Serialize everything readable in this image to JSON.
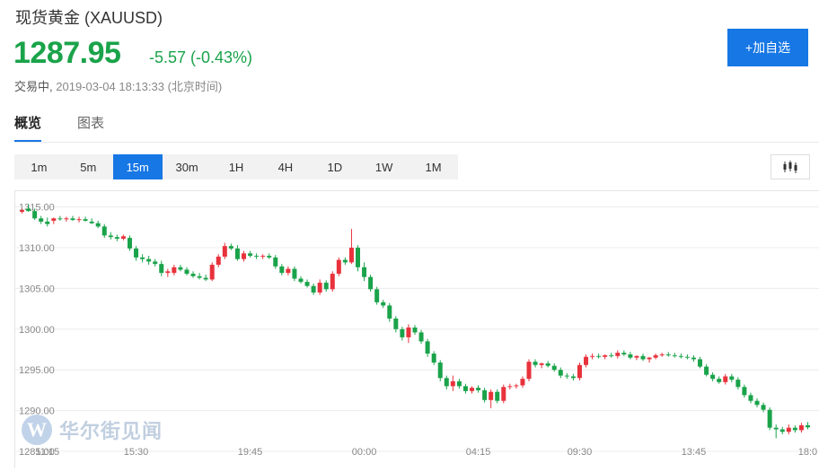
{
  "header": {
    "title": "现货黄金 (XAUUSD)",
    "price": "1287.95",
    "change": "-5.57 (-0.43%)",
    "status": "交易中,",
    "timestamp": "2019-03-04 18:13:33 (北京时间)",
    "add_button": "+加自选"
  },
  "tabs": [
    {
      "label": "概览",
      "active": true
    },
    {
      "label": "图表",
      "active": false
    }
  ],
  "ranges": [
    {
      "label": "1m",
      "active": false
    },
    {
      "label": "5m",
      "active": false
    },
    {
      "label": "15m",
      "active": true
    },
    {
      "label": "30m",
      "active": false
    },
    {
      "label": "1H",
      "active": false
    },
    {
      "label": "4H",
      "active": false
    },
    {
      "label": "1D",
      "active": false
    },
    {
      "label": "1W",
      "active": false
    },
    {
      "label": "1M",
      "active": false
    }
  ],
  "chart_type_icon": "candlestick-icon",
  "watermark": {
    "logo": "W",
    "text": "华尔街见闻"
  },
  "colors": {
    "up": "#e8323c",
    "down": "#1aa34a",
    "accent": "#1677e5"
  },
  "chart_data": {
    "type": "candlestick",
    "ylim": [
      1285.0,
      1316.5
    ],
    "y_ticks": [
      "1315.00",
      "1310.00",
      "1305.00",
      "1300.00",
      "1295.00",
      "1290.00",
      "1285.00"
    ],
    "y_tick_values": [
      1315,
      1310,
      1305,
      1300,
      1295,
      1290,
      1285
    ],
    "x_ticks": [
      "11:15",
      "15:30",
      "19:45",
      "00:00",
      "04:15",
      "09:30",
      "13:45",
      "18:0"
    ],
    "x_tick_index": [
      4,
      18,
      36,
      54,
      72,
      88,
      106,
      124
    ],
    "candles": [
      [
        1314.4,
        1314.8,
        1314.2,
        1314.6
      ],
      [
        1314.8,
        1315.3,
        1314.4,
        1314.5
      ],
      [
        1314.5,
        1314.8,
        1313.4,
        1313.6
      ],
      [
        1313.6,
        1313.9,
        1312.9,
        1313.2
      ],
      [
        1313.2,
        1313.7,
        1312.6,
        1312.9
      ],
      [
        1313.3,
        1313.7,
        1312.9,
        1313.6
      ],
      [
        1313.6,
        1313.9,
        1313.3,
        1313.5
      ],
      [
        1313.5,
        1313.8,
        1313.2,
        1313.6
      ],
      [
        1313.6,
        1313.9,
        1313.3,
        1313.4
      ],
      [
        1313.4,
        1313.8,
        1313.1,
        1313.5
      ],
      [
        1313.5,
        1313.8,
        1313.2,
        1313.3
      ],
      [
        1313.2,
        1313.6,
        1312.9,
        1313.0
      ],
      [
        1313.0,
        1313.3,
        1312.4,
        1312.6
      ],
      [
        1312.6,
        1312.9,
        1311.2,
        1311.5
      ],
      [
        1311.5,
        1311.9,
        1311.0,
        1311.3
      ],
      [
        1311.3,
        1311.6,
        1310.8,
        1311.1
      ],
      [
        1311.1,
        1311.6,
        1310.9,
        1311.4
      ],
      [
        1311.2,
        1311.5,
        1309.6,
        1309.9
      ],
      [
        1309.9,
        1310.2,
        1308.4,
        1308.8
      ],
      [
        1308.8,
        1309.2,
        1308.2,
        1308.6
      ],
      [
        1308.6,
        1309.0,
        1307.9,
        1308.3
      ],
      [
        1308.3,
        1308.6,
        1307.7,
        1308.0
      ],
      [
        1308.0,
        1308.4,
        1306.5,
        1306.9
      ],
      [
        1306.9,
        1307.4,
        1306.4,
        1307.1
      ],
      [
        1306.9,
        1307.9,
        1306.6,
        1307.6
      ],
      [
        1307.6,
        1307.9,
        1307.1,
        1307.3
      ],
      [
        1307.3,
        1307.6,
        1306.6,
        1306.8
      ],
      [
        1306.8,
        1307.1,
        1306.3,
        1306.5
      ],
      [
        1306.5,
        1306.9,
        1306.1,
        1306.3
      ],
      [
        1306.3,
        1306.7,
        1305.9,
        1306.1
      ],
      [
        1306.1,
        1308.2,
        1305.9,
        1307.9
      ],
      [
        1307.9,
        1309.2,
        1307.6,
        1308.9
      ],
      [
        1308.9,
        1310.6,
        1308.6,
        1310.2
      ],
      [
        1310.2,
        1310.5,
        1309.7,
        1309.9
      ],
      [
        1309.9,
        1310.3,
        1308.4,
        1308.6
      ],
      [
        1308.6,
        1309.6,
        1308.3,
        1309.3
      ],
      [
        1309.3,
        1309.6,
        1308.8,
        1309.0
      ],
      [
        1309.0,
        1309.3,
        1308.6,
        1308.9
      ],
      [
        1308.9,
        1309.2,
        1308.6,
        1309.0
      ],
      [
        1309.0,
        1309.3,
        1308.6,
        1308.8
      ],
      [
        1308.8,
        1309.1,
        1307.4,
        1307.7
      ],
      [
        1307.7,
        1308.0,
        1306.6,
        1306.9
      ],
      [
        1306.9,
        1307.7,
        1306.6,
        1307.4
      ],
      [
        1307.4,
        1307.7,
        1305.9,
        1306.2
      ],
      [
        1306.2,
        1306.5,
        1305.6,
        1305.8
      ],
      [
        1305.8,
        1306.1,
        1305.1,
        1305.3
      ],
      [
        1305.3,
        1305.6,
        1304.2,
        1304.5
      ],
      [
        1304.5,
        1306.1,
        1304.2,
        1305.7
      ],
      [
        1305.7,
        1306.0,
        1304.6,
        1304.9
      ],
      [
        1304.9,
        1307.1,
        1304.6,
        1306.8
      ],
      [
        1306.8,
        1308.8,
        1306.5,
        1308.5
      ],
      [
        1308.5,
        1308.8,
        1307.9,
        1308.2
      ],
      [
        1308.2,
        1312.3,
        1308.0,
        1310.0
      ],
      [
        1310.0,
        1310.3,
        1307.1,
        1307.6
      ],
      [
        1307.6,
        1308.2,
        1305.9,
        1306.4
      ],
      [
        1306.4,
        1306.7,
        1304.6,
        1304.9
      ],
      [
        1304.9,
        1305.2,
        1303.0,
        1303.3
      ],
      [
        1303.3,
        1303.6,
        1302.6,
        1302.9
      ],
      [
        1302.9,
        1303.2,
        1300.9,
        1301.3
      ],
      [
        1301.3,
        1301.6,
        1299.6,
        1300.0
      ],
      [
        1300.0,
        1300.3,
        1298.6,
        1299.0
      ],
      [
        1299.0,
        1300.6,
        1298.3,
        1300.2
      ],
      [
        1300.2,
        1300.5,
        1299.3,
        1299.6
      ],
      [
        1299.6,
        1299.9,
        1298.2,
        1298.5
      ],
      [
        1298.5,
        1298.8,
        1296.6,
        1297.0
      ],
      [
        1297.0,
        1297.3,
        1295.6,
        1295.9
      ],
      [
        1295.9,
        1296.2,
        1293.6,
        1294.0
      ],
      [
        1294.0,
        1294.3,
        1292.6,
        1293.0
      ],
      [
        1293.0,
        1294.3,
        1292.4,
        1293.6
      ],
      [
        1293.6,
        1293.9,
        1292.7,
        1293.0
      ],
      [
        1293.0,
        1293.3,
        1292.1,
        1292.4
      ],
      [
        1292.4,
        1293.0,
        1292.1,
        1292.8
      ],
      [
        1292.8,
        1293.1,
        1292.2,
        1292.5
      ],
      [
        1292.5,
        1292.8,
        1291.0,
        1291.3
      ],
      [
        1291.3,
        1292.6,
        1290.3,
        1292.3
      ],
      [
        1292.3,
        1292.6,
        1290.9,
        1291.2
      ],
      [
        1291.2,
        1293.2,
        1290.9,
        1292.9
      ],
      [
        1292.9,
        1293.3,
        1292.6,
        1293.0
      ],
      [
        1293.0,
        1293.3,
        1292.7,
        1293.1
      ],
      [
        1293.1,
        1294.2,
        1292.8,
        1293.9
      ],
      [
        1293.9,
        1296.3,
        1293.6,
        1296.0
      ],
      [
        1296.0,
        1296.3,
        1295.3,
        1295.6
      ],
      [
        1295.6,
        1295.9,
        1295.2,
        1295.8
      ],
      [
        1295.8,
        1296.1,
        1295.3,
        1295.5
      ],
      [
        1295.5,
        1295.8,
        1294.8,
        1295.0
      ],
      [
        1295.0,
        1295.3,
        1294.0,
        1294.3
      ],
      [
        1294.3,
        1294.6,
        1293.9,
        1294.2
      ],
      [
        1294.2,
        1294.5,
        1293.7,
        1294.0
      ],
      [
        1294.0,
        1295.9,
        1293.7,
        1295.6
      ],
      [
        1295.6,
        1296.9,
        1295.3,
        1296.6
      ],
      [
        1296.6,
        1297.0,
        1296.3,
        1296.7
      ],
      [
        1296.7,
        1297.0,
        1296.4,
        1296.6
      ],
      [
        1296.6,
        1296.9,
        1296.3,
        1296.8
      ],
      [
        1296.8,
        1297.1,
        1296.5,
        1296.7
      ],
      [
        1296.7,
        1297.4,
        1296.4,
        1297.1
      ],
      [
        1297.1,
        1297.4,
        1296.7,
        1296.9
      ],
      [
        1296.9,
        1297.2,
        1296.3,
        1296.5
      ],
      [
        1296.5,
        1296.8,
        1296.2,
        1296.7
      ],
      [
        1296.7,
        1297.0,
        1296.1,
        1296.3
      ],
      [
        1296.3,
        1296.6,
        1295.9,
        1296.5
      ],
      [
        1296.5,
        1297.0,
        1296.3,
        1296.8
      ],
      [
        1296.8,
        1297.1,
        1296.6,
        1296.9
      ],
      [
        1296.9,
        1297.2,
        1296.6,
        1296.8
      ],
      [
        1296.8,
        1297.1,
        1296.5,
        1296.7
      ],
      [
        1296.7,
        1297.0,
        1296.4,
        1296.6
      ],
      [
        1296.6,
        1296.9,
        1296.3,
        1296.5
      ],
      [
        1296.5,
        1296.8,
        1296.0,
        1296.3
      ],
      [
        1296.3,
        1296.6,
        1295.2,
        1295.4
      ],
      [
        1295.4,
        1295.7,
        1294.2,
        1294.4
      ],
      [
        1294.4,
        1294.7,
        1293.6,
        1293.9
      ],
      [
        1293.9,
        1294.2,
        1293.3,
        1293.5
      ],
      [
        1293.5,
        1294.5,
        1293.2,
        1294.2
      ],
      [
        1294.2,
        1294.5,
        1293.5,
        1293.8
      ],
      [
        1293.8,
        1294.1,
        1292.6,
        1292.9
      ],
      [
        1292.9,
        1293.2,
        1291.6,
        1291.9
      ],
      [
        1291.9,
        1292.2,
        1290.9,
        1291.2
      ],
      [
        1291.2,
        1291.5,
        1290.4,
        1290.7
      ],
      [
        1290.7,
        1291.0,
        1289.8,
        1290.1
      ],
      [
        1290.1,
        1290.4,
        1287.6,
        1287.9
      ],
      [
        1287.9,
        1288.3,
        1286.6,
        1287.7
      ],
      [
        1287.7,
        1288.0,
        1287.1,
        1287.4
      ],
      [
        1287.4,
        1288.3,
        1287.1,
        1287.9
      ],
      [
        1287.9,
        1288.2,
        1287.3,
        1287.6
      ],
      [
        1287.6,
        1288.5,
        1287.3,
        1288.2
      ],
      [
        1288.2,
        1288.6,
        1287.7,
        1287.95
      ]
    ]
  }
}
